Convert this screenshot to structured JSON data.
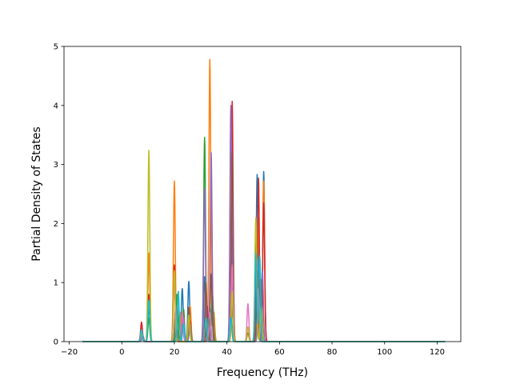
{
  "chart_data": {
    "type": "line",
    "title": "",
    "xlabel": "Frequency (THz)",
    "ylabel": "Partial Density of States",
    "xlim": [
      -22,
      129
    ],
    "ylim": [
      0,
      5
    ],
    "xticks": [
      -20,
      0,
      20,
      40,
      60,
      80,
      100,
      120
    ],
    "yticks": [
      0,
      1,
      2,
      3,
      4,
      5
    ],
    "xtick_labels": [
      "−20",
      "0",
      "20",
      "40",
      "60",
      "80",
      "100",
      "120"
    ],
    "ytick_labels": [
      "0",
      "1",
      "2",
      "3",
      "4",
      "5"
    ],
    "x_range": [
      -15,
      123
    ],
    "grid": false,
    "legend": "none",
    "series": [
      {
        "color": "#1f77b4",
        "peaks": [
          [
            7.5,
            0.12
          ],
          [
            10.3,
            0.6
          ],
          [
            20.5,
            0.5
          ],
          [
            23.0,
            0.9
          ],
          [
            25.5,
            1.02
          ],
          [
            31.5,
            1.1
          ],
          [
            33.5,
            0.6
          ],
          [
            42.0,
            1.8
          ],
          [
            51.5,
            2.83
          ],
          [
            54.0,
            2.88
          ]
        ]
      },
      {
        "color": "#ff7f0e",
        "peaks": [
          [
            7.5,
            0.25
          ],
          [
            10.3,
            1.5
          ],
          [
            20.0,
            2.72
          ],
          [
            22.0,
            0.5
          ],
          [
            26.0,
            0.6
          ],
          [
            33.5,
            4.78
          ],
          [
            35.0,
            0.5
          ],
          [
            42.0,
            1.2
          ],
          [
            52.0,
            2.1
          ],
          [
            54.0,
            2.72
          ]
        ]
      },
      {
        "color": "#2ca02c",
        "peaks": [
          [
            7.5,
            0.2
          ],
          [
            10.3,
            0.4
          ],
          [
            21.0,
            0.8
          ],
          [
            23.5,
            0.55
          ],
          [
            31.5,
            3.46
          ],
          [
            34.5,
            0.8
          ],
          [
            42.0,
            0.9
          ],
          [
            51.0,
            1.9
          ],
          [
            53.0,
            1.0
          ]
        ]
      },
      {
        "color": "#d62728",
        "peaks": [
          [
            7.5,
            0.33
          ],
          [
            10.3,
            0.8
          ],
          [
            20.0,
            1.3
          ],
          [
            23.0,
            0.45
          ],
          [
            26.0,
            0.35
          ],
          [
            32.5,
            0.6
          ],
          [
            42.0,
            4.07
          ],
          [
            52.0,
            2.77
          ],
          [
            54.0,
            2.35
          ]
        ]
      },
      {
        "color": "#9467bd",
        "peaks": [
          [
            8.0,
            0.1
          ],
          [
            20.5,
            0.6
          ],
          [
            23.5,
            0.4
          ],
          [
            31.5,
            2.6
          ],
          [
            34.0,
            3.2
          ],
          [
            41.5,
            4.0
          ],
          [
            51.5,
            1.4
          ],
          [
            53.5,
            1.2
          ]
        ]
      },
      {
        "color": "#8c564b",
        "peaks": [
          [
            7.5,
            0.15
          ],
          [
            20.5,
            0.4
          ],
          [
            25.5,
            0.58
          ],
          [
            32.0,
            1.0
          ],
          [
            34.0,
            1.15
          ],
          [
            42.0,
            3.2
          ],
          [
            48.0,
            0.15
          ],
          [
            51.5,
            1.2
          ],
          [
            53.0,
            1.05
          ]
        ]
      },
      {
        "color": "#e377c2",
        "peaks": [
          [
            7.5,
            0.2
          ],
          [
            20.0,
            0.95
          ],
          [
            23.0,
            0.5
          ],
          [
            33.5,
            0.5
          ],
          [
            42.0,
            1.3
          ],
          [
            48.0,
            0.64
          ],
          [
            52.0,
            0.9
          ]
        ]
      },
      {
        "color": "#7f7f7f",
        "peaks": [
          [
            7.5,
            0.1
          ],
          [
            20.5,
            0.35
          ],
          [
            26.0,
            0.3
          ],
          [
            33.0,
            0.4
          ],
          [
            42.0,
            0.55
          ],
          [
            52.0,
            0.6
          ]
        ]
      },
      {
        "color": "#bcbd22",
        "peaks": [
          [
            7.5,
            0.15
          ],
          [
            10.3,
            3.24
          ],
          [
            20.0,
            1.2
          ],
          [
            25.5,
            0.45
          ],
          [
            32.0,
            0.35
          ],
          [
            42.0,
            0.85
          ],
          [
            48.0,
            0.25
          ],
          [
            51.0,
            2.1
          ],
          [
            53.0,
            0.6
          ]
        ]
      },
      {
        "color": "#17becf",
        "peaks": [
          [
            7.5,
            0.2
          ],
          [
            10.3,
            0.7
          ],
          [
            21.5,
            0.85
          ],
          [
            23.5,
            0.3
          ],
          [
            32.0,
            0.4
          ],
          [
            41.5,
            0.4
          ],
          [
            51.0,
            1.5
          ],
          [
            52.5,
            1.45
          ]
        ]
      }
    ]
  }
}
